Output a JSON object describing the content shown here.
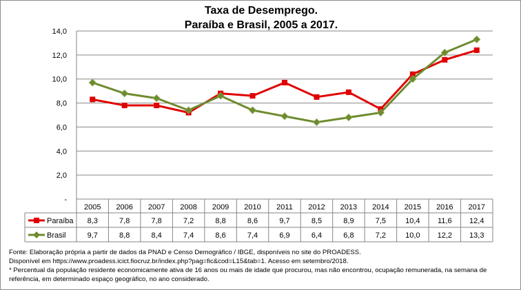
{
  "chart_data": {
    "type": "line",
    "title": [
      "Taxa de Desemprego.",
      "Paraíba e Brasil, 2005 a 2017."
    ],
    "categories": [
      "2005",
      "2006",
      "2007",
      "2008",
      "2009",
      "2010",
      "2011",
      "2012",
      "2013",
      "2014",
      "2015",
      "2016",
      "2017"
    ],
    "series": [
      {
        "name": "Paraíba",
        "color": "#e00000",
        "marker": "square",
        "values": [
          8.3,
          7.8,
          7.8,
          7.2,
          8.8,
          8.6,
          9.7,
          8.5,
          8.9,
          7.5,
          10.4,
          11.6,
          12.4
        ],
        "labels": [
          "8,3",
          "7,8",
          "7,8",
          "7,2",
          "8,8",
          "8,6",
          "9,7",
          "8,5",
          "8,9",
          "7,5",
          "10,4",
          "11,6",
          "12,4"
        ]
      },
      {
        "name": "Brasil",
        "color": "#6e8b2f",
        "marker": "diamond",
        "values": [
          9.7,
          8.8,
          8.4,
          7.4,
          8.6,
          7.4,
          6.9,
          6.4,
          6.8,
          7.2,
          10.0,
          12.2,
          13.3
        ],
        "labels": [
          "9,7",
          "8,8",
          "8,4",
          "7,4",
          "8,6",
          "7,4",
          "6,9",
          "6,4",
          "6,8",
          "7,2",
          "10,0",
          "12,2",
          "13,3"
        ]
      }
    ],
    "ylim": [
      0,
      14
    ],
    "yticks": [
      0,
      2,
      4,
      6,
      8,
      10,
      12,
      14
    ],
    "ytick_labels": [
      "-",
      "2,0",
      "4,0",
      "6,0",
      "8,0",
      "10,0",
      "12,0",
      "14,0"
    ],
    "grid": true,
    "legend": "data-table"
  },
  "footnotes": [
    "Fonte: Elaboração própria a partir de dados da PNAD e Censo Demográfico / IBGE, disponíveis no site do PROADESS.",
    "Disponível em https://www.proadess.icict.fiocruz.br/index.php?pag=fic&cod=L15&tab=1. Acesso em  setembro/2018.",
    "* Percentual da população residente economicamente ativa de 16 anos ou mais de idade que procurou, mas não encontrou, ocupação remunerada, na semana de",
    "referência, em determinado espaço geográfico, no ano considerado."
  ]
}
